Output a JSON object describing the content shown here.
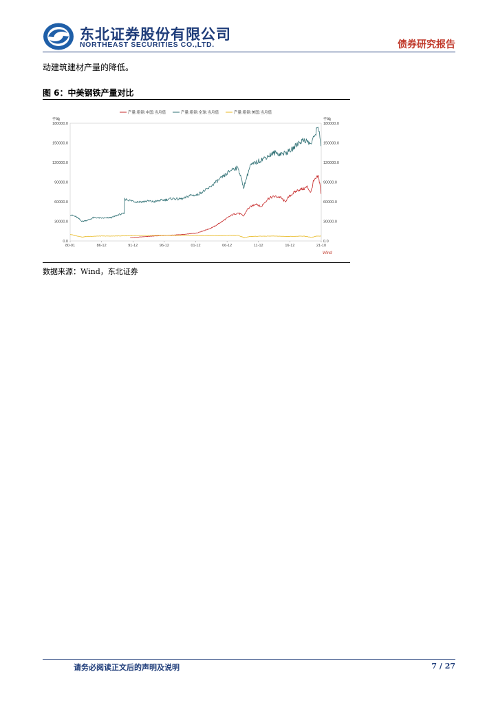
{
  "header": {
    "company_cn": "东北证券股份有限公司",
    "company_en": "NORTHEAST SECURITIES CO.,LTD.",
    "report_type": "债券研究报告",
    "brand_color": "#1f3d7a"
  },
  "body": {
    "text": "动建筑建材产量的降低。"
  },
  "figure": {
    "title": "图 6：中美钢铁产量对比",
    "source": "数据来源：Wind，东北证券"
  },
  "chart_data": {
    "type": "line",
    "unit_left": "千吨",
    "unit_right": "千吨",
    "legend": [
      "产量:粗钢:中国:当月值",
      "产量:粗钢:全球:当月值",
      "产量:粗钢:美国:当月值"
    ],
    "x_ticks": [
      "80-01",
      "86-12",
      "91-12",
      "96-12",
      "01-12",
      "06-12",
      "11-12",
      "16-12",
      "21-10"
    ],
    "y_ticks": [
      "0.0",
      "30000.0",
      "60000.0",
      "90000.0",
      "120000.0",
      "150000.0",
      "180000.0"
    ],
    "ylim": [
      0,
      180000
    ],
    "watermark": "Wind",
    "series": [
      {
        "name": "产量:粗钢:中国:当月值",
        "color": "#c62828",
        "points": [
          [
            1990.0,
            5000
          ],
          [
            1993,
            7000
          ],
          [
            1996,
            8500
          ],
          [
            1999,
            10000
          ],
          [
            2001,
            12000
          ],
          [
            2002,
            15000
          ],
          [
            2003,
            18000
          ],
          [
            2004,
            22000
          ],
          [
            2005,
            28000
          ],
          [
            2006,
            34000
          ],
          [
            2007,
            40000
          ],
          [
            2008,
            43000
          ],
          [
            2008.9,
            38000
          ],
          [
            2009.5,
            48000
          ],
          [
            2010,
            52000
          ],
          [
            2011,
            57000
          ],
          [
            2011.8,
            52000
          ],
          [
            2012.5,
            60000
          ],
          [
            2013,
            65000
          ],
          [
            2014,
            68000
          ],
          [
            2015,
            67000
          ],
          [
            2015.8,
            60000
          ],
          [
            2016.5,
            68000
          ],
          [
            2017,
            72000
          ],
          [
            2018,
            78000
          ],
          [
            2019,
            80000
          ],
          [
            2019.5,
            83000
          ],
          [
            2020.1,
            74000
          ],
          [
            2020.5,
            90000
          ],
          [
            2021.3,
            99000
          ],
          [
            2021.6,
            88000
          ],
          [
            2021.8,
            72000
          ]
        ]
      },
      {
        "name": "产量:粗钢:全球:当月值",
        "color": "#2e6f73",
        "points": [
          [
            1980.0,
            40000
          ],
          [
            1981,
            37000
          ],
          [
            1982,
            30000
          ],
          [
            1983,
            32000
          ],
          [
            1984,
            36000
          ],
          [
            1985,
            35000
          ],
          [
            1986,
            35000
          ],
          [
            1987,
            36000
          ],
          [
            1988,
            40000
          ],
          [
            1989.0,
            42000
          ],
          [
            1989.1,
            64000
          ],
          [
            1990,
            62000
          ],
          [
            1991,
            60000
          ],
          [
            1992,
            60000
          ],
          [
            1993,
            61000
          ],
          [
            1994,
            60000
          ],
          [
            1995,
            62000
          ],
          [
            1996,
            63000
          ],
          [
            1997,
            65000
          ],
          [
            1998,
            64000
          ],
          [
            1999,
            65000
          ],
          [
            2000,
            70000
          ],
          [
            2001,
            70000
          ],
          [
            2002,
            75000
          ],
          [
            2003,
            80000
          ],
          [
            2004,
            88000
          ],
          [
            2005,
            95000
          ],
          [
            2006,
            102000
          ],
          [
            2007,
            110000
          ],
          [
            2008,
            112000
          ],
          [
            2008.9,
            82000
          ],
          [
            2009.5,
            100000
          ],
          [
            2010,
            115000
          ],
          [
            2011,
            120000
          ],
          [
            2012,
            125000
          ],
          [
            2013,
            130000
          ],
          [
            2014,
            135000
          ],
          [
            2015,
            133000
          ],
          [
            2016,
            135000
          ],
          [
            2017,
            140000
          ],
          [
            2018,
            150000
          ],
          [
            2019,
            155000
          ],
          [
            2020.1,
            148000
          ],
          [
            2020.6,
            158000
          ],
          [
            2021.3,
            175000
          ],
          [
            2021.6,
            162000
          ],
          [
            2021.8,
            145000
          ]
        ]
      },
      {
        "name": "产量:粗钢:美国:当月值",
        "color": "#e8b923",
        "points": [
          [
            1980.0,
            10000
          ],
          [
            1982,
            6000
          ],
          [
            1983,
            7000
          ],
          [
            1985,
            7500
          ],
          [
            1987,
            7500
          ],
          [
            1990,
            8000
          ],
          [
            1995,
            8500
          ],
          [
            2000,
            8500
          ],
          [
            2005,
            8000
          ],
          [
            2008,
            8500
          ],
          [
            2009,
            5000
          ],
          [
            2010,
            7000
          ],
          [
            2014,
            7500
          ],
          [
            2016,
            6800
          ],
          [
            2019,
            7400
          ],
          [
            2020.3,
            5500
          ],
          [
            2021,
            7500
          ],
          [
            2021.8,
            7500
          ]
        ]
      }
    ]
  }
}
